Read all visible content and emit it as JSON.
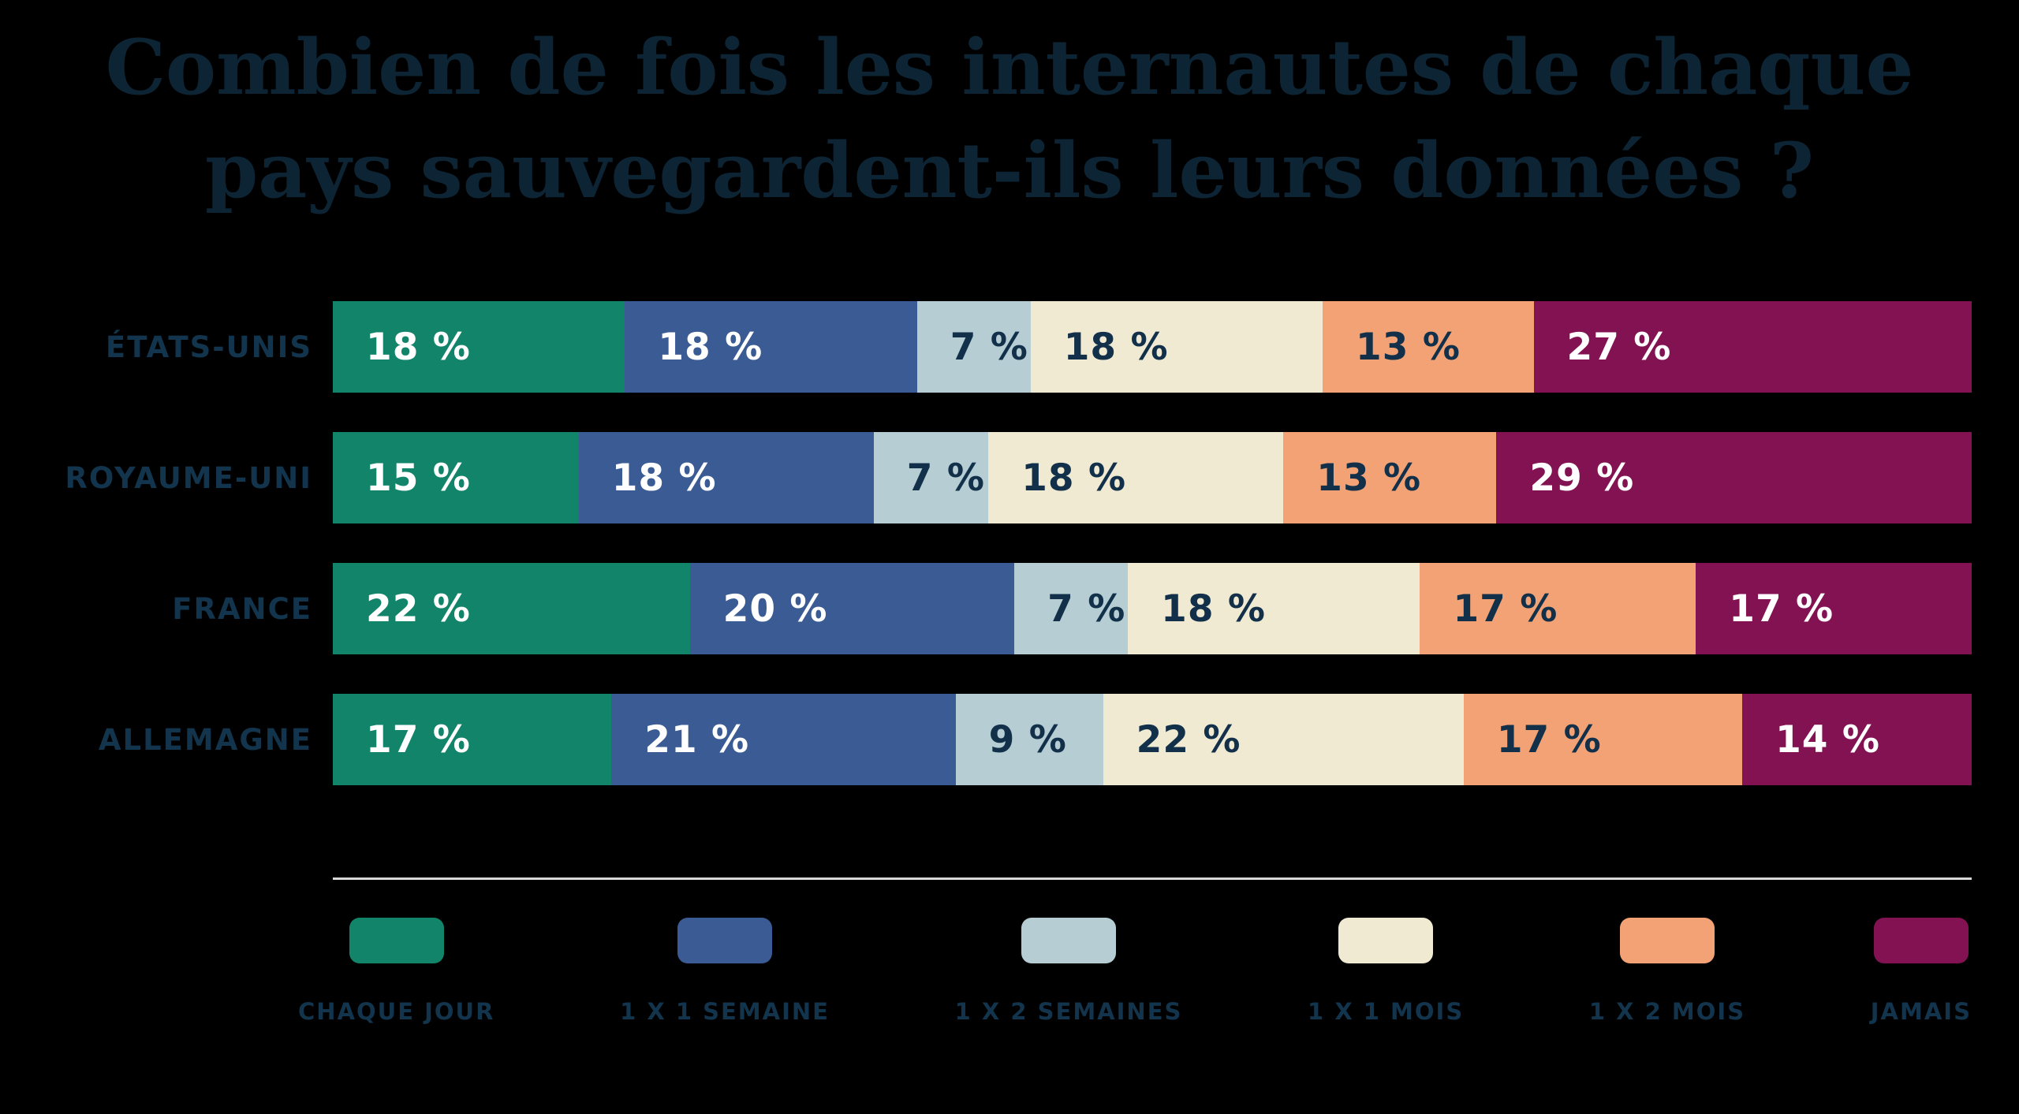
{
  "title": {
    "line1": "Combien de fois les internautes de chaque",
    "line2": "pays sauvegardent-ils leurs données ?"
  },
  "chart_data": {
    "type": "bar",
    "subtype": "stacked-horizontal",
    "unit": "%",
    "title": "Combien de fois les internautes de chaque pays sauvegardent-ils leurs données ?",
    "categories": [
      "ÉTATS-UNIS",
      "ROYAUME-UNI",
      "FRANCE",
      "ALLEMAGNE"
    ],
    "series": [
      {
        "name": "CHAQUE JOUR",
        "color": "#12846a",
        "label_color": "#ffffff",
        "values": [
          18,
          15,
          22,
          17
        ]
      },
      {
        "name": "1 X 1 SEMAINE",
        "color": "#3a5b94",
        "label_color": "#ffffff",
        "values": [
          18,
          18,
          20,
          21
        ]
      },
      {
        "name": "1 X 2 SEMAINES",
        "color": "#b5cdd3",
        "label_color": "#13304a",
        "values": [
          7,
          7,
          7,
          9
        ]
      },
      {
        "name": "1 X 1 MOIS",
        "color": "#f0ead3",
        "label_color": "#13304a",
        "values": [
          18,
          18,
          18,
          22
        ]
      },
      {
        "name": "1 X 2 MOIS",
        "color": "#f2a274",
        "label_color": "#13304a",
        "values": [
          13,
          13,
          17,
          17
        ]
      },
      {
        "name": "JAMAIS",
        "color": "#831253",
        "label_color": "#ffffff",
        "values": [
          27,
          29,
          17,
          14
        ]
      }
    ],
    "value_label_format": "{value} %",
    "legend_position": "bottom",
    "axis": "none",
    "grid": false
  },
  "colors": {
    "background": "#000000",
    "title_text": "#0d2435",
    "label_text": "#12344c",
    "divider": "#d8d8d8"
  }
}
